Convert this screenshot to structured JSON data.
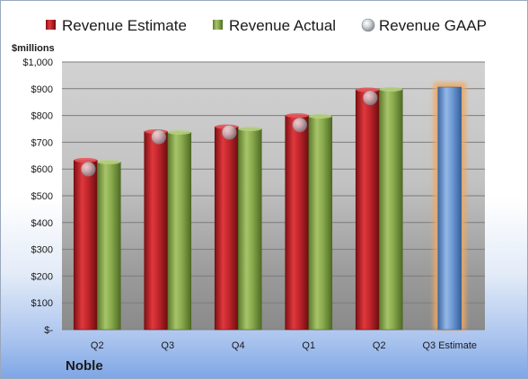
{
  "company": "Noble",
  "chart_data": {
    "type": "bar",
    "ylabel": "$millions",
    "categories": [
      "Q2",
      "Q3",
      "Q4",
      "Q1",
      "Q2",
      "Q3 Estimate"
    ],
    "series": [
      {
        "name": "Revenue Estimate",
        "color": "#c0262c",
        "values": [
          633,
          740,
          758,
          800,
          896,
          null
        ]
      },
      {
        "name": "Revenue Actual",
        "color": "#8aab4e",
        "values": [
          626,
          737,
          750,
          797,
          898,
          null
        ]
      },
      {
        "name": "Revenue GAAP",
        "color": "#c8ccd2",
        "values": [
          600,
          720,
          737,
          765,
          866,
          null
        ]
      }
    ],
    "projection": {
      "category": "Q3 Estimate",
      "value": 906,
      "color": "#6f9bd6",
      "highlight": "#f0a860"
    },
    "ylim": [
      0,
      1000
    ],
    "ytick_step": 100,
    "yticks": [
      "$-",
      "$100",
      "$200",
      "$300",
      "$400",
      "$500",
      "$600",
      "$700",
      "$800",
      "$900",
      "$1,000"
    ],
    "grid": true,
    "legend": "top"
  }
}
